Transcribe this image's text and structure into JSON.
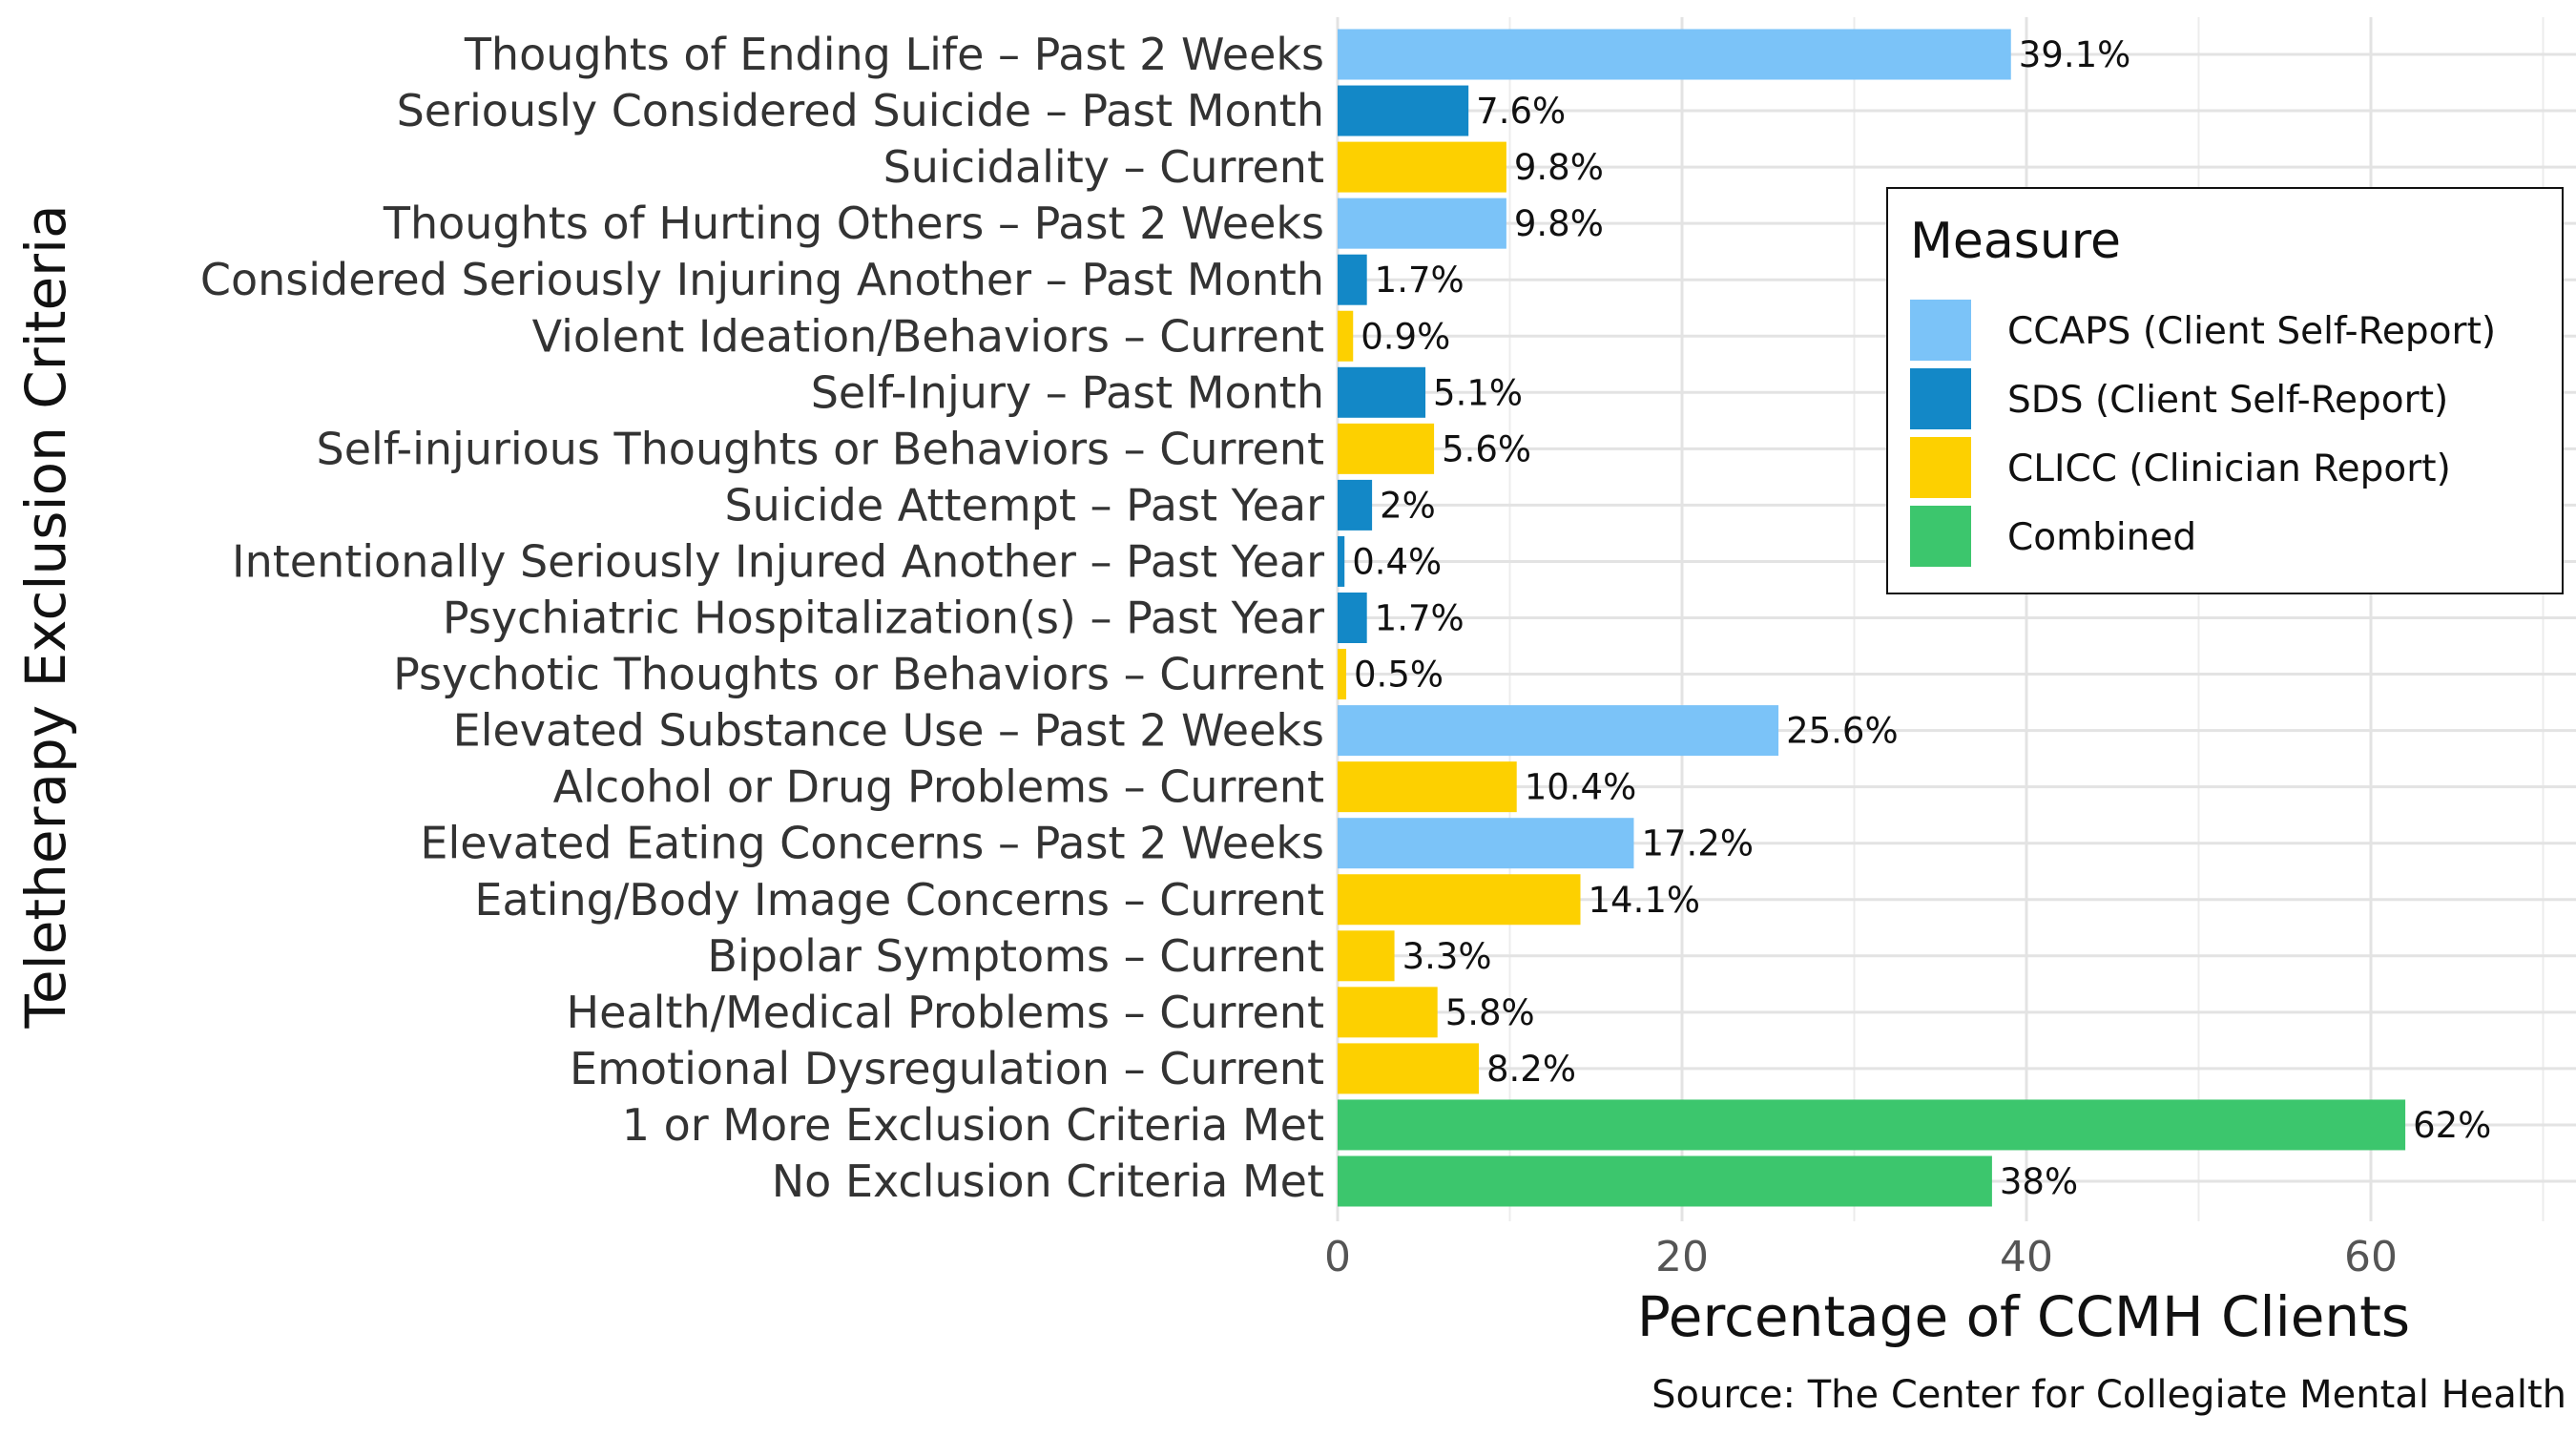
{
  "chart_data": {
    "type": "bar",
    "orientation": "horizontal",
    "xlabel": "Percentage of CCMH Clients",
    "ylabel": "Teletherapy Exclusion Criteria",
    "caption": "Source: The Center for Collegiate Mental Health",
    "xlim": [
      0,
      70
    ],
    "xticks": [
      0,
      20,
      40,
      60
    ],
    "grid": true,
    "legend": {
      "title": "Measure",
      "position": "right",
      "entries": [
        {
          "name": "CCAPS (Client Self-Report)",
          "color": "#7BC3F8"
        },
        {
          "name": "SDS (Client Self-Report)",
          "color": "#1388C7"
        },
        {
          "name": "CLICC (Clinician Report)",
          "color": "#FDD000"
        },
        {
          "name": "Combined",
          "color": "#3CC66D"
        }
      ]
    },
    "categories": [
      "Thoughts of Ending Life – Past 2 Weeks",
      "Seriously Considered Suicide – Past Month",
      "Suicidality – Current",
      "Thoughts of Hurting Others – Past 2 Weeks",
      "Considered Seriously Injuring Another – Past Month",
      "Violent Ideation/Behaviors – Current",
      "Self-Injury – Past Month",
      "Self-injurious Thoughts or Behaviors – Current",
      "Suicide Attempt – Past Year",
      "Intentionally Seriously Injured Another – Past Year",
      "Psychiatric Hospitalization(s) – Past Year",
      "Psychotic Thoughts or Behaviors – Current",
      "Elevated Substance Use – Past 2 Weeks",
      "Alcohol or Drug Problems – Current",
      "Elevated Eating Concerns – Past 2 Weeks",
      "Eating/Body Image Concerns – Current",
      "Bipolar Symptoms – Current",
      "Health/Medical Problems – Current",
      "Emotional Dysregulation – Current",
      "1 or More Exclusion Criteria Met",
      "No Exclusion Criteria Met"
    ],
    "values": [
      39.1,
      7.6,
      9.8,
      9.8,
      1.7,
      0.9,
      5.1,
      5.6,
      2.0,
      0.4,
      1.7,
      0.5,
      25.6,
      10.4,
      17.2,
      14.1,
      3.3,
      5.8,
      8.2,
      62.0,
      38.0
    ],
    "value_labels": [
      "39.1%",
      "7.6%",
      "9.8%",
      "9.8%",
      "1.7%",
      "0.9%",
      "5.1%",
      "5.6%",
      "2%",
      "0.4%",
      "1.7%",
      "0.5%",
      "25.6%",
      "10.4%",
      "17.2%",
      "14.1%",
      "3.3%",
      "5.8%",
      "8.2%",
      "62%",
      "38%"
    ],
    "measures": [
      "CCAPS (Client Self-Report)",
      "SDS (Client Self-Report)",
      "CLICC (Clinician Report)",
      "CCAPS (Client Self-Report)",
      "SDS (Client Self-Report)",
      "CLICC (Clinician Report)",
      "SDS (Client Self-Report)",
      "CLICC (Clinician Report)",
      "SDS (Client Self-Report)",
      "SDS (Client Self-Report)",
      "SDS (Client Self-Report)",
      "CLICC (Clinician Report)",
      "CCAPS (Client Self-Report)",
      "CLICC (Clinician Report)",
      "CCAPS (Client Self-Report)",
      "CLICC (Clinician Report)",
      "CLICC (Clinician Report)",
      "CLICC (Clinician Report)",
      "CLICC (Clinician Report)",
      "Combined",
      "Combined"
    ]
  }
}
